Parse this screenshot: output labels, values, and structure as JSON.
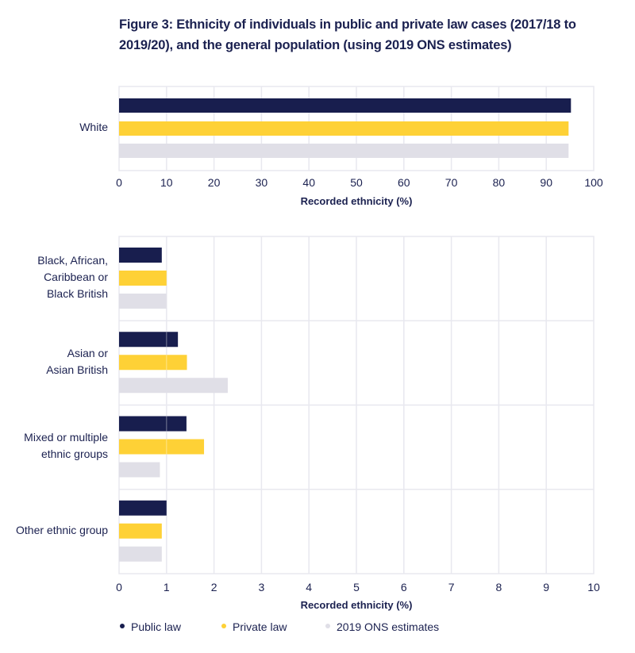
{
  "title": "Figure 3: Ethnicity of individuals in public and private law cases (2017/18 to 2019/20), and the general population (using 2019 ONS estimates)",
  "colors": {
    "public_law": "#181e4e",
    "private_law": "#fed136",
    "ons": "#e0dfe7",
    "grid": "#e8e8ef",
    "text": "#1b2150"
  },
  "legend": [
    {
      "name": "Public law",
      "color_key": "public_law"
    },
    {
      "name": "Private law",
      "color_key": "private_law"
    },
    {
      "name": "2019 ONS estimates",
      "color_key": "ons"
    }
  ],
  "chart_data": [
    {
      "type": "bar",
      "orientation": "horizontal",
      "categories": [
        "White"
      ],
      "series": [
        {
          "name": "Public law",
          "values": [
            95.2
          ]
        },
        {
          "name": "Private law",
          "values": [
            94.7
          ]
        },
        {
          "name": "2019 ONS estimates",
          "values": [
            94.7
          ]
        }
      ],
      "xlabel": "Recorded ethnicity (%)",
      "ylabel": "",
      "xlim": [
        0,
        100
      ],
      "xticks": [
        "0",
        "10",
        "20",
        "30",
        "40",
        "50",
        "60",
        "70",
        "80",
        "90",
        "100"
      ],
      "grid": true
    },
    {
      "type": "bar",
      "orientation": "horizontal",
      "categories": [
        [
          "Black, African,",
          "Caribbean or",
          "Black British"
        ],
        [
          "Asian or",
          "Asian British"
        ],
        [
          "Mixed or multiple",
          "ethnic groups"
        ],
        [
          "Other ethnic group"
        ]
      ],
      "series": [
        {
          "name": "Public law",
          "values": [
            0.9,
            1.24,
            1.42,
            1.0
          ]
        },
        {
          "name": "Private law",
          "values": [
            1.0,
            1.43,
            1.79,
            0.9
          ]
        },
        {
          "name": "2019 ONS estimates",
          "values": [
            1.0,
            2.29,
            0.86,
            0.9
          ]
        }
      ],
      "xlabel": "Recorded ethnicity (%)",
      "ylabel": "",
      "xlim": [
        0,
        10
      ],
      "xticks": [
        "0",
        "1",
        "2",
        "3",
        "4",
        "5",
        "6",
        "7",
        "8",
        "9",
        "10"
      ],
      "grid": true,
      "legend_position": "bottom-left"
    }
  ]
}
